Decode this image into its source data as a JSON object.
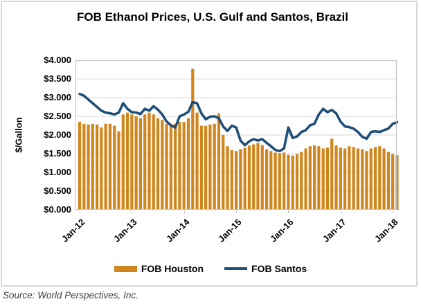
{
  "source_text": "Source: World Perspectives, Inc.",
  "chart_data": {
    "type": "combo",
    "title": "FOB Ethanol Prices, U.S. Gulf and Santos, Brazil",
    "xlabel": "",
    "ylabel": "$/Gallon",
    "ylim": [
      0,
      4
    ],
    "grid": true,
    "legend_position": "bottom",
    "yticks": [
      "$4.000",
      "$3.500",
      "$3.000",
      "$2.500",
      "$2.000",
      "$1.500",
      "$1.000",
      "$0.500",
      "$0.000"
    ],
    "xticks": [
      "Jan-12",
      "Jan-13",
      "Jan-14",
      "Jan-15",
      "Jan-16",
      "Jan-17",
      "Jan-18"
    ],
    "categories": [
      "Jan-12",
      "Feb-12",
      "Mar-12",
      "Apr-12",
      "May-12",
      "Jun-12",
      "Jul-12",
      "Aug-12",
      "Sep-12",
      "Oct-12",
      "Nov-12",
      "Dec-12",
      "Jan-13",
      "Feb-13",
      "Mar-13",
      "Apr-13",
      "May-13",
      "Jun-13",
      "Jul-13",
      "Aug-13",
      "Sep-13",
      "Oct-13",
      "Nov-13",
      "Dec-13",
      "Jan-14",
      "Feb-14",
      "Mar-14",
      "Apr-14",
      "May-14",
      "Jun-14",
      "Jul-14",
      "Aug-14",
      "Sep-14",
      "Oct-14",
      "Nov-14",
      "Dec-14",
      "Jan-15",
      "Feb-15",
      "Mar-15",
      "Apr-15",
      "May-15",
      "Jun-15",
      "Jul-15",
      "Aug-15",
      "Sep-15",
      "Oct-15",
      "Nov-15",
      "Dec-15",
      "Jan-16",
      "Feb-16",
      "Mar-16",
      "Apr-16",
      "May-16",
      "Jun-16",
      "Jul-16",
      "Aug-16",
      "Sep-16",
      "Oct-16",
      "Nov-16",
      "Dec-16",
      "Jan-17",
      "Feb-17",
      "Mar-17",
      "Apr-17",
      "May-17",
      "Jun-17",
      "Jul-17",
      "Aug-17",
      "Sep-17",
      "Oct-17",
      "Nov-17",
      "Dec-17",
      "Jan-18",
      "Feb-18"
    ],
    "series": [
      {
        "name": "FOB Houston",
        "type": "bar",
        "color": "#D0861D",
        "values": [
          2.35,
          2.3,
          2.28,
          2.3,
          2.28,
          2.2,
          2.3,
          2.3,
          2.25,
          2.1,
          2.55,
          2.6,
          2.55,
          2.5,
          2.45,
          2.55,
          2.6,
          2.55,
          2.45,
          2.4,
          2.3,
          2.25,
          2.3,
          2.35,
          2.35,
          2.45,
          3.77,
          2.6,
          2.25,
          2.25,
          2.28,
          2.3,
          2.58,
          2.0,
          1.7,
          1.6,
          1.57,
          1.62,
          1.66,
          1.72,
          1.75,
          1.79,
          1.73,
          1.62,
          1.57,
          1.53,
          1.51,
          1.53,
          1.47,
          1.45,
          1.49,
          1.55,
          1.64,
          1.7,
          1.72,
          1.7,
          1.64,
          1.66,
          1.9,
          1.72,
          1.66,
          1.64,
          1.7,
          1.68,
          1.64,
          1.62,
          1.57,
          1.64,
          1.68,
          1.7,
          1.64,
          1.55,
          1.49,
          1.46
        ]
      },
      {
        "name": "FOB Santos",
        "type": "line",
        "color": "#1F4E79",
        "values": [
          3.1,
          3.05,
          2.95,
          2.85,
          2.75,
          2.65,
          2.6,
          2.58,
          2.55,
          2.6,
          2.85,
          2.7,
          2.61,
          2.6,
          2.56,
          2.7,
          2.65,
          2.77,
          2.68,
          2.55,
          2.36,
          2.26,
          2.2,
          2.5,
          2.55,
          2.62,
          2.88,
          2.85,
          2.58,
          2.42,
          2.49,
          2.5,
          2.45,
          2.23,
          2.11,
          2.25,
          2.2,
          1.85,
          1.73,
          1.83,
          1.89,
          1.85,
          1.89,
          1.79,
          1.7,
          1.6,
          1.57,
          1.64,
          2.2,
          1.92,
          1.96,
          2.08,
          2.13,
          2.26,
          2.3,
          2.55,
          2.7,
          2.61,
          2.67,
          2.58,
          2.36,
          2.23,
          2.21,
          2.17,
          2.08,
          1.95,
          1.9,
          2.08,
          2.1,
          2.08,
          2.13,
          2.17,
          2.3,
          2.34
        ]
      }
    ],
    "colors": {
      "gridline": "#D9D9D9",
      "plot_border": "#BFBFBF",
      "chart_border": "#D9D9D9"
    }
  }
}
